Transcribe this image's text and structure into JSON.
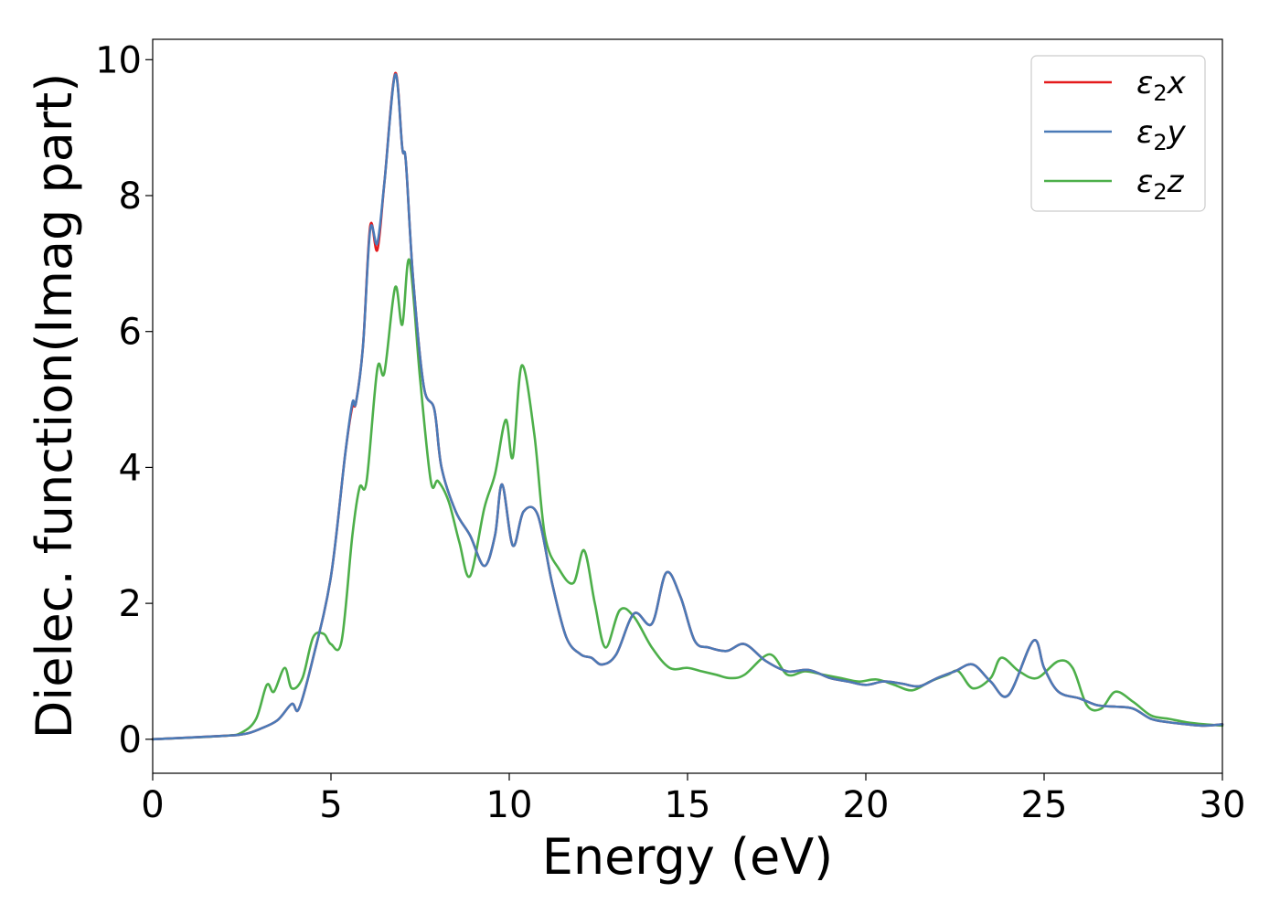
{
  "chart_data": {
    "type": "line",
    "xlabel": "Energy (eV)",
    "ylabel": "Dielec. function(Imag part)",
    "xlim": [
      0,
      30
    ],
    "ylim": [
      -0.5,
      10.3
    ],
    "xticks": [
      0,
      5,
      10,
      15,
      20,
      25,
      30
    ],
    "yticks": [
      0,
      2,
      4,
      6,
      8,
      10
    ],
    "xtick_labels": [
      "0",
      "5",
      "10",
      "15",
      "20",
      "25",
      "30"
    ],
    "ytick_labels": [
      "0",
      "2",
      "4",
      "6",
      "8",
      "10"
    ],
    "grid": false,
    "legend_position": "top-right",
    "series": [
      {
        "name": "ε2x",
        "legend": {
          "sym": "ε",
          "sub": "2",
          "var": "x"
        },
        "color": "#e41a1c",
        "x": [
          0,
          2,
          2.6,
          3.0,
          3.5,
          3.9,
          4.1,
          4.5,
          5.0,
          5.4,
          5.6,
          5.7,
          5.9,
          6.1,
          6.3,
          6.5,
          6.8,
          7.0,
          7.1,
          7.3,
          7.6,
          7.9,
          8.1,
          8.5,
          8.9,
          9.3,
          9.6,
          9.8,
          10.1,
          10.4,
          10.8,
          11.2,
          11.6,
          12.0,
          12.3,
          12.6,
          13.0,
          13.5,
          14.0,
          14.4,
          14.8,
          15.2,
          15.6,
          16.1,
          16.6,
          17.2,
          17.8,
          18.4,
          19.0,
          19.5,
          20.0,
          20.5,
          21.0,
          21.5,
          22.0,
          22.5,
          23.0,
          23.5,
          24.0,
          24.7,
          25.0,
          25.4,
          26.0,
          26.5,
          27.0,
          27.5,
          28.0,
          28.5,
          29.0,
          29.5,
          30.0
        ],
        "y": [
          0,
          0.05,
          0.08,
          0.15,
          0.28,
          0.52,
          0.45,
          1.2,
          2.4,
          4.2,
          4.9,
          4.95,
          5.8,
          7.55,
          7.2,
          8.2,
          9.8,
          8.7,
          8.5,
          6.8,
          5.2,
          4.85,
          4.0,
          3.35,
          3.0,
          2.55,
          3.0,
          3.75,
          2.85,
          3.35,
          3.3,
          2.3,
          1.5,
          1.25,
          1.2,
          1.1,
          1.25,
          1.85,
          1.7,
          2.45,
          2.1,
          1.45,
          1.35,
          1.3,
          1.4,
          1.15,
          1.0,
          1.02,
          0.9,
          0.85,
          0.8,
          0.85,
          0.82,
          0.78,
          0.9,
          1.0,
          1.1,
          0.85,
          0.65,
          1.45,
          1.05,
          0.7,
          0.6,
          0.5,
          0.48,
          0.45,
          0.3,
          0.25,
          0.22,
          0.2,
          0.22
        ]
      },
      {
        "name": "ε2y",
        "legend": {
          "sym": "ε",
          "sub": "2",
          "var": "y"
        },
        "color": "#4a7ab7",
        "x": [
          0,
          2,
          2.6,
          3.0,
          3.5,
          3.9,
          4.1,
          4.5,
          5.0,
          5.4,
          5.6,
          5.7,
          5.9,
          6.1,
          6.3,
          6.5,
          6.8,
          7.0,
          7.1,
          7.3,
          7.6,
          7.9,
          8.1,
          8.5,
          8.9,
          9.3,
          9.6,
          9.8,
          10.1,
          10.4,
          10.8,
          11.2,
          11.6,
          12.0,
          12.3,
          12.6,
          13.0,
          13.5,
          14.0,
          14.4,
          14.8,
          15.2,
          15.6,
          16.1,
          16.6,
          17.2,
          17.8,
          18.4,
          19.0,
          19.5,
          20.0,
          20.5,
          21.0,
          21.5,
          22.0,
          22.5,
          23.0,
          23.5,
          24.0,
          24.7,
          25.0,
          25.4,
          26.0,
          26.5,
          27.0,
          27.5,
          28.0,
          28.5,
          29.0,
          29.5,
          30.0
        ],
        "y": [
          0,
          0.05,
          0.08,
          0.15,
          0.28,
          0.52,
          0.45,
          1.2,
          2.4,
          4.2,
          4.95,
          4.95,
          5.8,
          7.5,
          7.3,
          8.2,
          9.78,
          8.7,
          8.5,
          6.8,
          5.2,
          4.85,
          4.0,
          3.35,
          3.0,
          2.55,
          3.0,
          3.75,
          2.85,
          3.35,
          3.3,
          2.3,
          1.5,
          1.25,
          1.2,
          1.1,
          1.25,
          1.85,
          1.7,
          2.45,
          2.1,
          1.45,
          1.35,
          1.3,
          1.4,
          1.15,
          1.0,
          1.02,
          0.9,
          0.85,
          0.8,
          0.85,
          0.82,
          0.78,
          0.9,
          1.0,
          1.1,
          0.85,
          0.65,
          1.45,
          1.05,
          0.7,
          0.6,
          0.5,
          0.48,
          0.45,
          0.3,
          0.25,
          0.22,
          0.2,
          0.22
        ]
      },
      {
        "name": "ε2z",
        "legend": {
          "sym": "ε",
          "sub": "2",
          "var": "z"
        },
        "color": "#4daf4a",
        "x": [
          0,
          2,
          2.5,
          2.9,
          3.2,
          3.4,
          3.7,
          3.9,
          4.2,
          4.5,
          4.8,
          5.0,
          5.3,
          5.6,
          5.8,
          6.0,
          6.3,
          6.5,
          6.8,
          7.0,
          7.2,
          7.5,
          7.8,
          8.0,
          8.3,
          8.6,
          8.9,
          9.3,
          9.6,
          9.9,
          10.1,
          10.35,
          10.7,
          11.0,
          11.4,
          11.8,
          12.1,
          12.4,
          12.7,
          13.1,
          13.5,
          14.0,
          14.5,
          15.0,
          15.4,
          15.8,
          16.2,
          16.6,
          17.3,
          17.8,
          18.3,
          18.8,
          19.3,
          19.8,
          20.3,
          20.8,
          21.3,
          21.8,
          22.3,
          22.6,
          23.0,
          23.5,
          23.8,
          24.3,
          24.8,
          25.4,
          25.8,
          26.2,
          26.6,
          27.0,
          27.5,
          28.0,
          28.5,
          29.0,
          29.5,
          30.0
        ],
        "y": [
          0,
          0.05,
          0.1,
          0.3,
          0.8,
          0.7,
          1.05,
          0.75,
          0.9,
          1.5,
          1.55,
          1.4,
          1.45,
          3.0,
          3.7,
          3.8,
          5.45,
          5.4,
          6.65,
          6.1,
          7.05,
          5.3,
          3.8,
          3.8,
          3.5,
          2.9,
          2.4,
          3.4,
          3.9,
          4.7,
          4.15,
          5.5,
          4.5,
          3.0,
          2.5,
          2.3,
          2.78,
          2.0,
          1.35,
          1.9,
          1.8,
          1.35,
          1.05,
          1.05,
          1.0,
          0.95,
          0.9,
          0.95,
          1.25,
          0.95,
          1.0,
          0.95,
          0.9,
          0.85,
          0.88,
          0.8,
          0.72,
          0.85,
          0.95,
          1.0,
          0.75,
          0.9,
          1.2,
          1.0,
          0.9,
          1.15,
          1.05,
          0.5,
          0.45,
          0.7,
          0.55,
          0.35,
          0.3,
          0.25,
          0.22,
          0.2
        ]
      }
    ]
  }
}
